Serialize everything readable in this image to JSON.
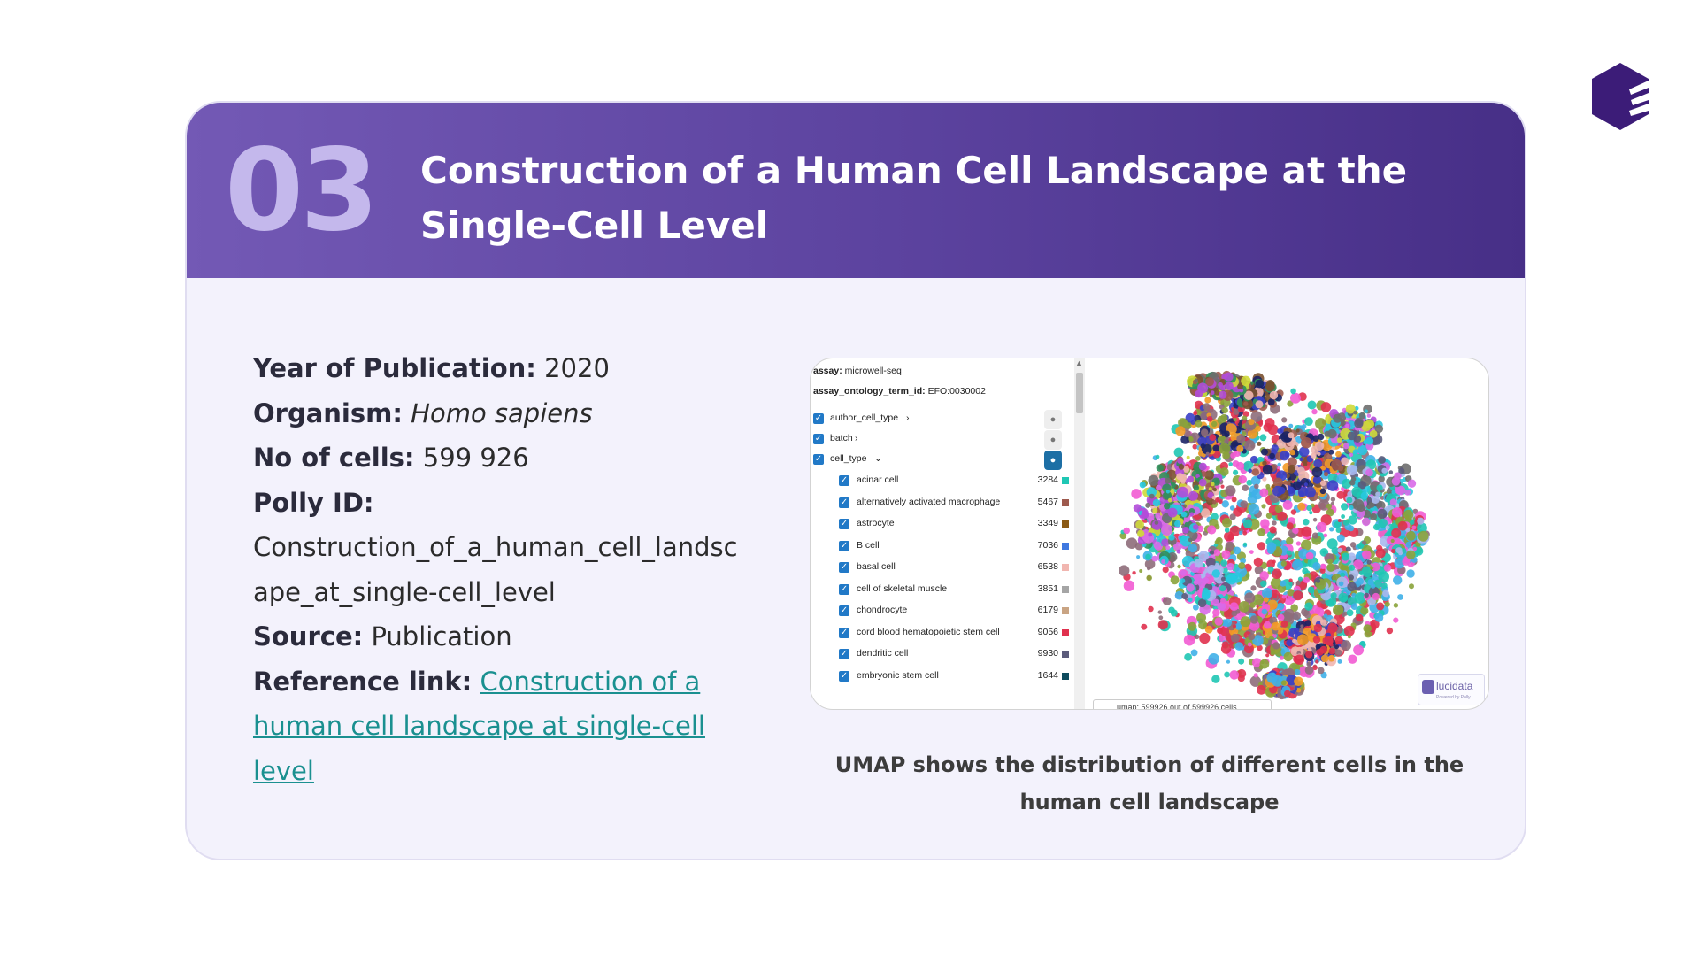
{
  "brand": {
    "logo_icon": "polly-cube-logo-icon",
    "color": "#3c1c78"
  },
  "header": {
    "number": "03",
    "title": "Construction of a Human Cell Landscape at the Single-Cell Level",
    "number_color": "#c4b8ec",
    "gradient": [
      "#7359b5",
      "#472f87"
    ]
  },
  "details": {
    "year_label": "Year of Publication:",
    "year_value": "2020",
    "organism_label": "Organism:",
    "organism_value": "Homo sapiens",
    "cells_label": "No of cells:",
    "cells_value": "599 926",
    "polly_label": "Polly ID:",
    "polly_value": "Construction_of_a_human_cell_landscape_at_single-cell_level",
    "source_label": "Source:",
    "source_value": "Publication",
    "reference_label": "Reference link:",
    "reference_text": "Construction of a human cell landscape at single-cell level",
    "link_color": "#1a9090"
  },
  "figure": {
    "assay_label": "assay:",
    "assay_value": "microwell-seq",
    "assay_ontology_label": "assay_ontology_term_id:",
    "assay_ontology_value": "EFO:0030002",
    "filters": [
      {
        "label": "author_cell_type",
        "chevron": "›"
      },
      {
        "label": "batch",
        "chevron": "›"
      },
      {
        "label": "cell_type",
        "chevron": "⌄"
      }
    ],
    "drop_icon": "water-drop-icon",
    "cell_types": [
      {
        "label": "acinar cell",
        "count": "3284",
        "color": "#1fc7b4"
      },
      {
        "label": "alternatively activated macrophage",
        "count": "5467",
        "color": "#9e5a4e"
      },
      {
        "label": "astrocyte",
        "count": "3349",
        "color": "#8b5a14"
      },
      {
        "label": "B cell",
        "count": "7036",
        "color": "#3f78e0"
      },
      {
        "label": "basal cell",
        "count": "6538",
        "color": "#f1b6b0"
      },
      {
        "label": "cell of skeletal muscle",
        "count": "3851",
        "color": "#a5a5a5"
      },
      {
        "label": "chondrocyte",
        "count": "6179",
        "color": "#c9a483"
      },
      {
        "label": "cord blood hematopoietic stem cell",
        "count": "9056",
        "color": "#e0314e"
      },
      {
        "label": "dendritic cell",
        "count": "9930",
        "color": "#5b5b7b"
      },
      {
        "label": "embryonic stem cell",
        "count": "1644",
        "color": "#0e4c5e"
      }
    ],
    "umap_status": "umap: 599926 out of 599926 cells",
    "watermark_name": "lucidata",
    "watermark_sub": "Powered by Polly"
  },
  "caption": "UMAP shows the distribution of different cells in the human cell landscape"
}
